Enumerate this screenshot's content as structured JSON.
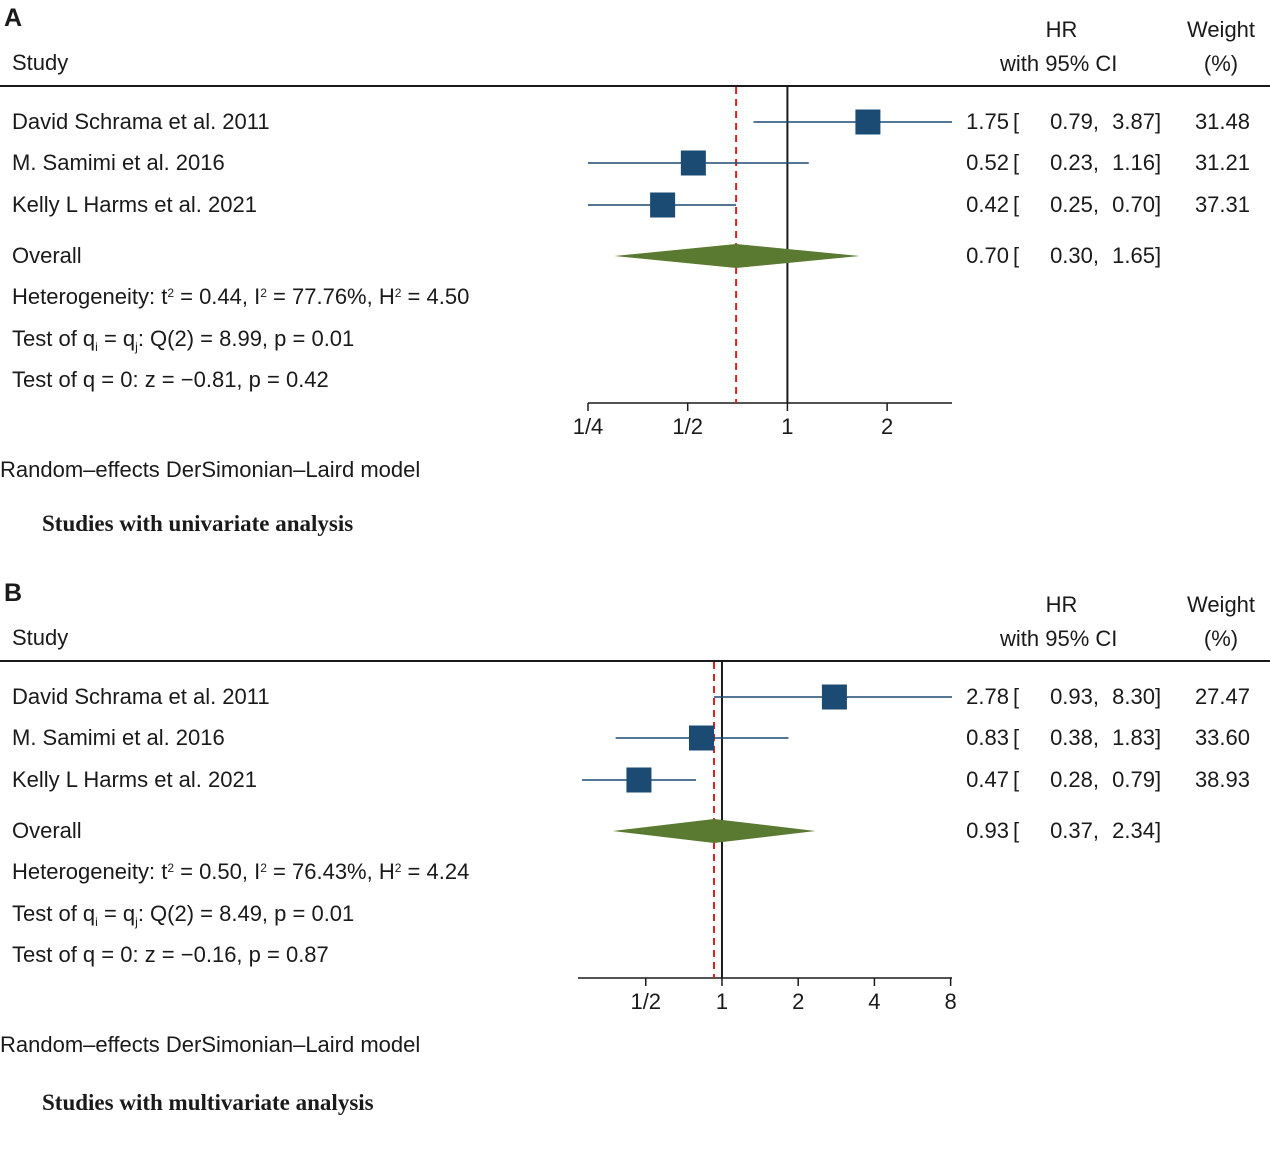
{
  "chart_data": [
    {
      "type": "forest",
      "panel_label": "A",
      "headers": {
        "study": "Study",
        "hr": "HR",
        "ci": "with 95% CI",
        "weight": "Weight",
        "weight_unit": "(%)"
      },
      "x_scale": "log2",
      "xlim": [
        0.25,
        3.14
      ],
      "ticks": [
        {
          "value": 0.25,
          "label": "1/4"
        },
        {
          "value": 0.5,
          "label": "1/2"
        },
        {
          "value": 1,
          "label": "1"
        },
        {
          "value": 2,
          "label": "2"
        }
      ],
      "reference_line": 1,
      "overall_line": 0.7,
      "studies": [
        {
          "name": "David Schrama et al. 2011",
          "hr": 1.75,
          "lo": 0.79,
          "hi": 3.87,
          "hr_text": "1.75",
          "lo_text": "0.79,",
          "hi_text": "3.87",
          "weight": "31.48",
          "arrow_right": true
        },
        {
          "name": "M. Samimi et al. 2016",
          "hr": 0.52,
          "lo": 0.23,
          "hi": 1.16,
          "hr_text": "0.52",
          "lo_text": "0.23,",
          "hi_text": "1.16",
          "weight": "31.21",
          "arrow_right": false
        },
        {
          "name": "Kelly L Harms et al. 2021",
          "hr": 0.42,
          "lo": 0.25,
          "hi": 0.7,
          "hr_text": "0.42",
          "lo_text": "0.25,",
          "hi_text": "0.70",
          "weight": "37.31",
          "arrow_right": false
        }
      ],
      "overall": {
        "name": "Overall",
        "hr": 0.7,
        "lo": 0.3,
        "hi": 1.65,
        "hr_text": "0.70",
        "lo_text": "0.30,",
        "hi_text": "1.65"
      },
      "heterogeneity": {
        "prefix": "Heterogeneity: t",
        "t2": " = 0.44, I",
        "i2": " = 77.76%, H",
        "h2": " = 4.50",
        "sup": "2"
      },
      "test_qi": {
        "prefix": "Test of q",
        "sub_i": "i",
        "mid": " = q",
        "sub_j": "j",
        "suffix": ": Q(2) = 8.99, p = 0.01"
      },
      "test_q0": "Test of q = 0: z = −0.81, p = 0.42",
      "model": "Random–effects DerSimonian–Laird model",
      "caption": "Studies with univariate analysis",
      "colors": {
        "square": "#1b4a73",
        "ci_line": "#1b4a73",
        "diamond": "#5a7a31",
        "overall_line": "#e02020",
        "axis": "#1a1a1a"
      }
    },
    {
      "type": "forest",
      "panel_label": "B",
      "headers": {
        "study": "Study",
        "hr": "HR",
        "ci": "with 95% CI",
        "weight": "Weight",
        "weight_unit": "(%)"
      },
      "x_scale": "log2",
      "xlim": [
        0.27,
        8.1
      ],
      "ticks": [
        {
          "value": 0.5,
          "label": "1/2"
        },
        {
          "value": 1,
          "label": "1"
        },
        {
          "value": 2,
          "label": "2"
        },
        {
          "value": 4,
          "label": "4"
        },
        {
          "value": 8,
          "label": "8"
        }
      ],
      "reference_line": 1,
      "overall_line": 0.93,
      "studies": [
        {
          "name": "David Schrama et al. 2011",
          "hr": 2.78,
          "lo": 0.93,
          "hi": 8.3,
          "hr_text": "2.78",
          "lo_text": "0.93,",
          "hi_text": "8.30",
          "weight": "27.47",
          "arrow_right": true
        },
        {
          "name": "M. Samimi et al. 2016",
          "hr": 0.83,
          "lo": 0.38,
          "hi": 1.83,
          "hr_text": "0.83",
          "lo_text": "0.38,",
          "hi_text": "1.83",
          "weight": "33.60",
          "arrow_right": false
        },
        {
          "name": "Kelly L Harms et al. 2021",
          "hr": 0.47,
          "lo": 0.28,
          "hi": 0.79,
          "hr_text": "0.47",
          "lo_text": "0.28,",
          "hi_text": "0.79",
          "weight": "38.93",
          "arrow_right": false
        }
      ],
      "overall": {
        "name": "Overall",
        "hr": 0.93,
        "lo": 0.37,
        "hi": 2.34,
        "hr_text": "0.93",
        "lo_text": "0.37,",
        "hi_text": "2.34"
      },
      "heterogeneity": {
        "prefix": "Heterogeneity: t",
        "t2": " = 0.50, I",
        "i2": " = 76.43%, H",
        "h2": " = 4.24",
        "sup": "2"
      },
      "test_qi": {
        "prefix": "Test of q",
        "sub_i": "i",
        "mid": " = q",
        "sub_j": "j",
        "suffix": ": Q(2) = 8.49, p = 0.01"
      },
      "test_q0": "Test of q = 0: z = −0.16, p = 0.87",
      "model": "Random–effects DerSimonian–Laird model",
      "caption": "Studies with multivariate analysis",
      "colors": {
        "square": "#1b4a73",
        "ci_line": "#1b4a73",
        "diamond": "#5a7a31",
        "overall_line": "#e02020",
        "axis": "#1a1a1a"
      }
    }
  ],
  "bracket_left": "[",
  "bracket_right": "]"
}
